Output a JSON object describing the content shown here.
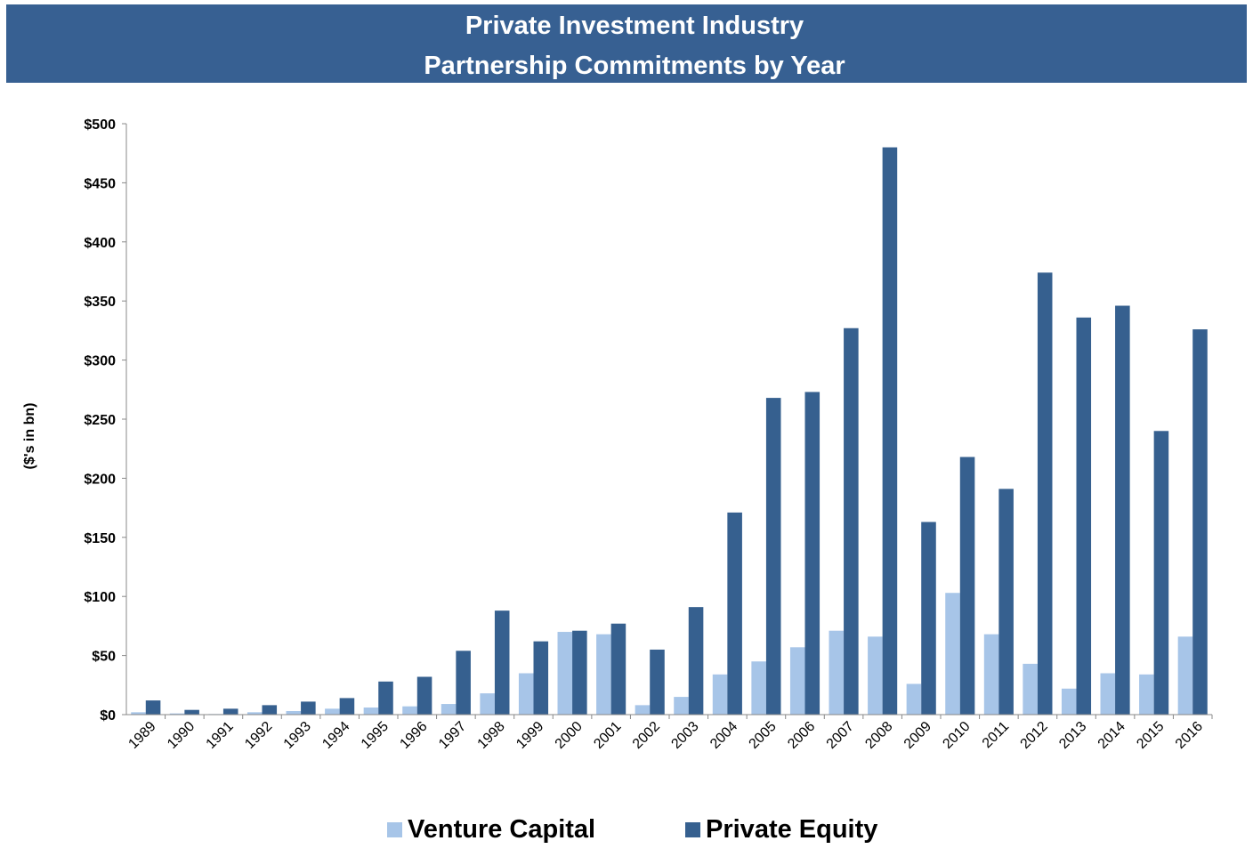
{
  "chart_data": {
    "type": "bar",
    "title": "Private Investment Industry",
    "subtitle": "Partnership Commitments by Year",
    "y_label": "($'s in bn)",
    "categories": [
      "1989",
      "1990",
      "1991",
      "1992",
      "1993",
      "1994",
      "1995",
      "1996",
      "1997",
      "1998",
      "1999",
      "2000",
      "2001",
      "2002",
      "2003",
      "2004",
      "2005",
      "2006",
      "2007",
      "2008",
      "2009",
      "2010",
      "2011",
      "2012",
      "2013",
      "2014",
      "2015",
      "2016"
    ],
    "series": [
      {
        "name": "Venture Capital",
        "color": "#a7c5e8",
        "values": [
          2,
          1,
          0.5,
          2,
          3,
          5,
          6,
          7,
          9,
          18,
          35,
          70,
          68,
          8,
          15,
          34,
          45,
          57,
          71,
          66,
          26,
          103,
          68,
          43,
          22,
          35,
          34,
          66
        ]
      },
      {
        "name": "Private Equity",
        "color": "#36608f",
        "values": [
          12,
          4,
          5,
          8,
          11,
          14,
          28,
          32,
          54,
          88,
          62,
          71,
          77,
          55,
          91,
          171,
          268,
          273,
          327,
          480,
          163,
          218,
          191,
          374,
          336,
          346,
          240,
          326
        ]
      }
    ],
    "ylim": [
      0,
      500
    ],
    "yticks": [
      {
        "value": 0,
        "label": "$0"
      },
      {
        "value": 50,
        "label": "$50"
      },
      {
        "value": 100,
        "label": "$100"
      },
      {
        "value": 150,
        "label": "$150"
      },
      {
        "value": 200,
        "label": "$200"
      },
      {
        "value": 250,
        "label": "$250"
      },
      {
        "value": 300,
        "label": "$300"
      },
      {
        "value": 350,
        "label": "$350"
      },
      {
        "value": 400,
        "label": "$400"
      },
      {
        "value": 450,
        "label": "$450"
      },
      {
        "value": 500,
        "label": "$500"
      }
    ],
    "grid": false,
    "legend": "bottom"
  }
}
